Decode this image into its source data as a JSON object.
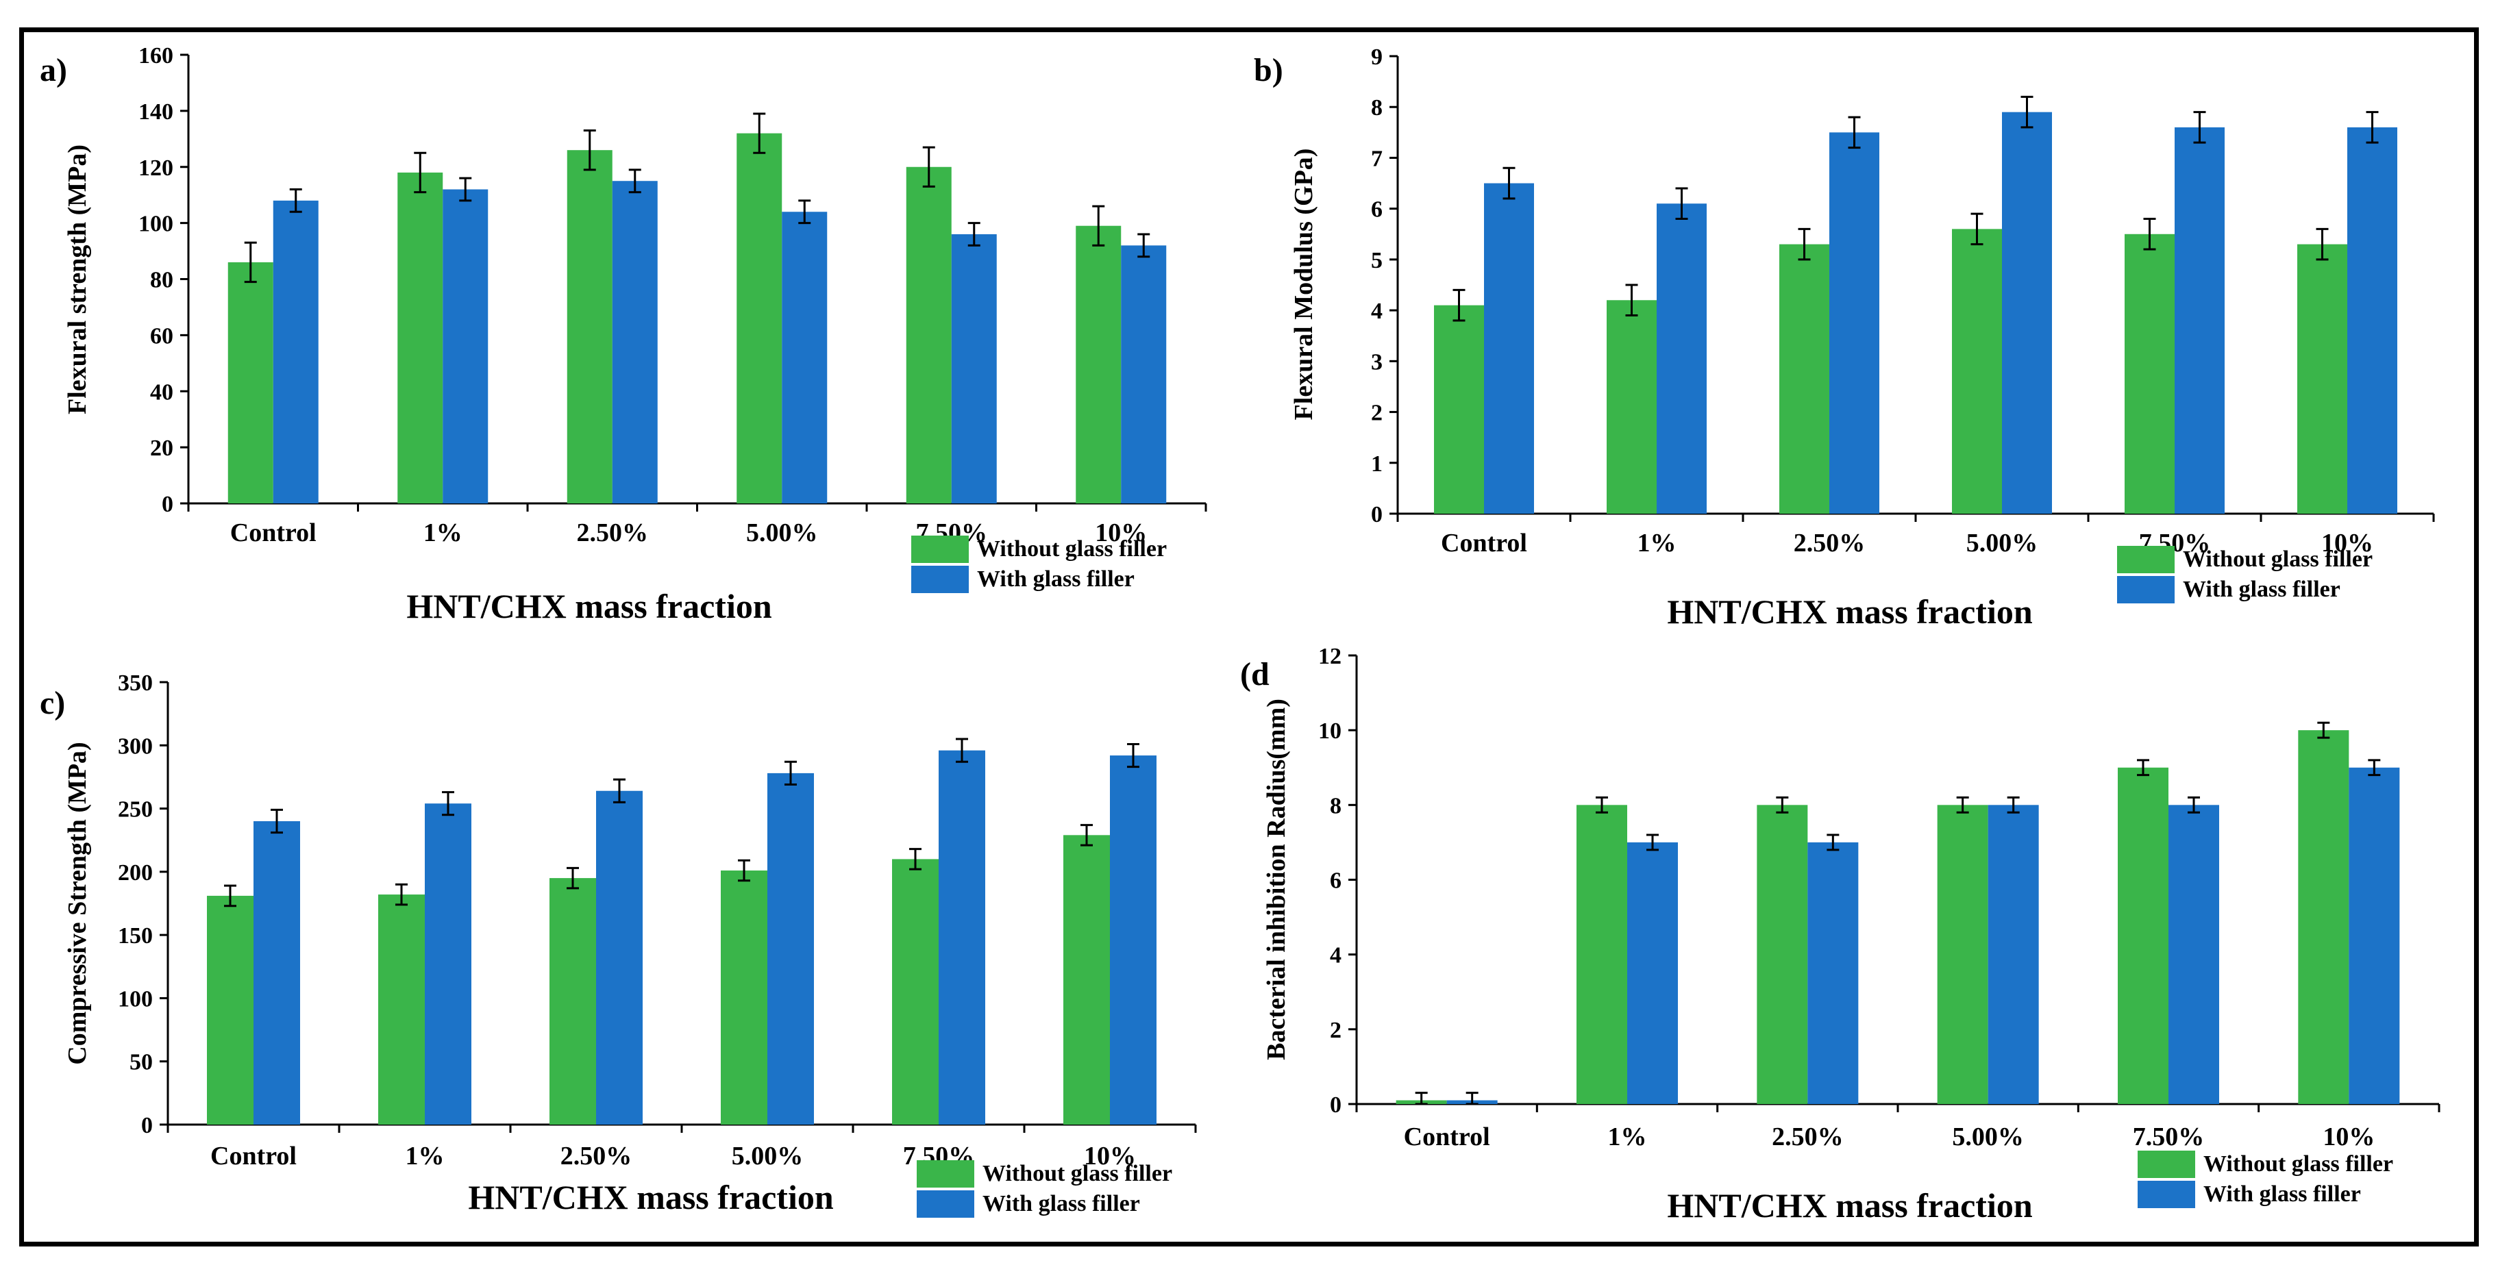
{
  "figure": {
    "caption": ""
  },
  "colors": {
    "without": "#3ab54a",
    "with": "#1c73c8"
  },
  "chart_data": [
    {
      "id": "a",
      "type": "bar",
      "panel_label": "a)",
      "categories": [
        "Control",
        "1%",
        "2.50%",
        "5.00%",
        "7.50%",
        "10%"
      ],
      "series": [
        {
          "name": "Without glass filler",
          "values": [
            86,
            118,
            126,
            132,
            120,
            99
          ],
          "errors": [
            7,
            7,
            7,
            7,
            7,
            7
          ]
        },
        {
          "name": "With glass filler",
          "values": [
            108,
            112,
            115,
            104,
            96,
            92
          ],
          "errors": [
            4,
            4,
            4,
            4,
            4,
            4
          ]
        }
      ],
      "xlabel": "HNT/CHX  mass fraction",
      "ylabel": "Flexural strength (MPa)",
      "ylim": [
        0,
        160
      ],
      "yticks": [
        "0",
        "20",
        "40",
        "60",
        "80",
        "100",
        "120",
        "140",
        "160"
      ],
      "legend": [
        "Without glass filler",
        "With glass filler"
      ]
    },
    {
      "id": "b",
      "type": "bar",
      "panel_label": "b)",
      "categories": [
        "Control",
        "1%",
        "2.50%",
        "5.00%",
        "7.50%",
        "10%"
      ],
      "series": [
        {
          "name": "Without glass filler",
          "values": [
            4.1,
            4.2,
            5.3,
            5.6,
            5.5,
            5.3
          ],
          "errors": [
            0.3,
            0.3,
            0.3,
            0.3,
            0.3,
            0.3
          ]
        },
        {
          "name": "With glass filler",
          "values": [
            6.5,
            6.1,
            7.5,
            7.9,
            7.6,
            7.6
          ],
          "errors": [
            0.3,
            0.3,
            0.3,
            0.3,
            0.3,
            0.3
          ]
        }
      ],
      "xlabel": "HNT/CHX  mass fraction",
      "ylabel": "Flexural Modulus (GPa)",
      "ylim": [
        0,
        9
      ],
      "yticks": [
        "0",
        "1",
        "2",
        "3",
        "4",
        "5",
        "6",
        "7",
        "8",
        "9"
      ],
      "legend": [
        "Without glass filler",
        "With glass filler"
      ]
    },
    {
      "id": "c",
      "type": "bar",
      "panel_label": "c)",
      "categories": [
        "Control",
        "1%",
        "2.50%",
        "5.00%",
        "7.50%",
        "10%"
      ],
      "series": [
        {
          "name": "Without glass filler",
          "values": [
            181,
            182,
            195,
            201,
            210,
            229
          ],
          "errors": [
            8,
            8,
            8,
            8,
            8,
            8
          ]
        },
        {
          "name": "With glass filler",
          "values": [
            240,
            254,
            264,
            278,
            296,
            292
          ],
          "errors": [
            9,
            9,
            9,
            9,
            9,
            9
          ]
        }
      ],
      "xlabel": "HNT/CHX  mass fraction",
      "ylabel": "Compressive Strength (MPa)",
      "ylim": [
        0,
        350
      ],
      "yticks": [
        "0",
        "50",
        "100",
        "150",
        "200",
        "250",
        "300",
        "350"
      ],
      "legend": [
        "Without glass filler",
        "With glass filler"
      ]
    },
    {
      "id": "d",
      "type": "bar",
      "panel_label": "(d",
      "categories": [
        "Control",
        "1%",
        "2.50%",
        "5.00%",
        "7.50%",
        "10%"
      ],
      "series": [
        {
          "name": "Without glass filler",
          "values": [
            0.1,
            8,
            8,
            8,
            9,
            10
          ],
          "errors": [
            0.2,
            0.2,
            0.2,
            0.2,
            0.2,
            0.2
          ]
        },
        {
          "name": "With glass filler",
          "values": [
            0.1,
            7,
            7,
            8,
            8,
            9
          ],
          "errors": [
            0.2,
            0.2,
            0.2,
            0.2,
            0.2,
            0.2
          ]
        }
      ],
      "xlabel": "HNT/CHX  mass fraction",
      "ylabel": "Bacterial inhibition Radius(mm)",
      "ylim": [
        0,
        12
      ],
      "yticks": [
        "0",
        "2",
        "4",
        "6",
        "8",
        "10",
        "12"
      ],
      "legend": [
        "Without glass filler",
        "With glass filler"
      ]
    }
  ]
}
